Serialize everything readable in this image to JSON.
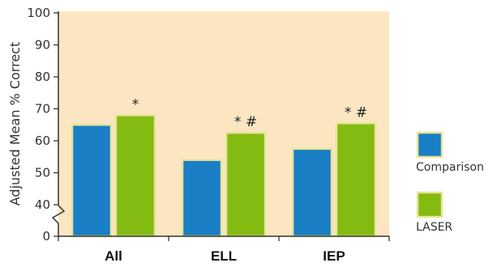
{
  "chart_data": {
    "type": "bar",
    "ylabel": "Adjusted Mean % Correct",
    "categories": [
      "All",
      "ELL",
      "IEP"
    ],
    "series": [
      {
        "name": "Comparison",
        "values": [
          65,
          54,
          57.5
        ],
        "color": "#1a7fc4"
      },
      {
        "name": "LASER",
        "values": [
          68,
          62.5,
          65.5
        ],
        "color": "#84bb12"
      }
    ],
    "annotations": [
      {
        "category": "All",
        "series": "LASER",
        "text": "*"
      },
      {
        "category": "ELL",
        "series": "LASER",
        "text": "* #"
      },
      {
        "category": "IEP",
        "series": "LASER",
        "text": "* #"
      }
    ],
    "ylim": [
      0,
      100
    ],
    "axis_break": [
      0,
      40
    ],
    "yticks": [
      0,
      40,
      50,
      60,
      70,
      80,
      90,
      100
    ],
    "legend_position": "right",
    "plot_background": "#fce6c1",
    "bar_border_color": "#e8e49a"
  }
}
